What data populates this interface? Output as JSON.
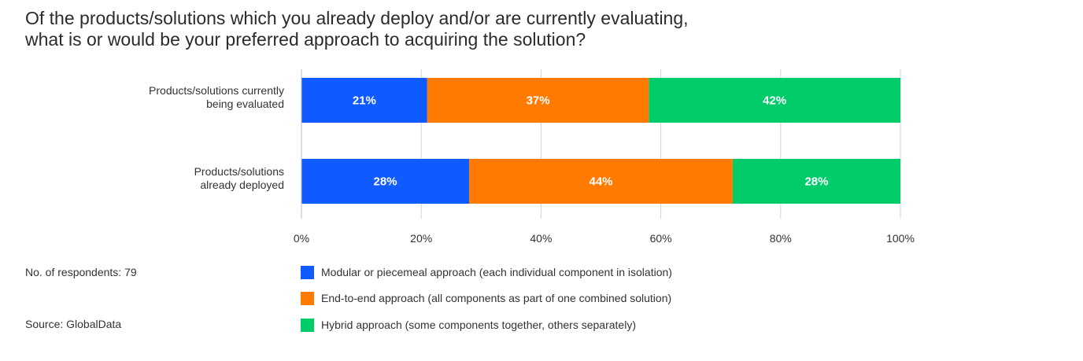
{
  "title_lines": [
    "Of the products/solutions which you already deploy and/or are currently evaluating,",
    "what is or would be your preferred approach to acquiring the solution?"
  ],
  "notes": {
    "respondents": "No. of respondents: 79",
    "source": "Source: GlobalData"
  },
  "colors": {
    "modular": "#0f5bff",
    "end_to_end": "#ff7a00",
    "hybrid": "#00cc6a"
  },
  "chart_data": {
    "type": "bar",
    "orientation": "horizontal",
    "stacked": true,
    "title": "Of the products/solutions which you already deploy and/or are currently evaluating, what is or would be your preferred approach to acquiring the solution?",
    "categories": [
      [
        "Products/solutions currently",
        "being evaluated"
      ],
      [
        "Products/solutions",
        "already deployed"
      ]
    ],
    "series": [
      {
        "name": "Modular or piecemeal approach (each individual component in isolation)",
        "values": [
          21,
          28
        ],
        "labels": [
          "21%",
          "28%"
        ],
        "color": "#0f5bff"
      },
      {
        "name": "End-to-end approach (all components as part of one combined solution)",
        "values": [
          37,
          44
        ],
        "labels": [
          "37%",
          "44%"
        ],
        "color": "#ff7a00"
      },
      {
        "name": "Hybrid approach (some components together, others separately)",
        "values": [
          42,
          28
        ],
        "labels": [
          "42%",
          "28%"
        ],
        "color": "#00cc6a"
      }
    ],
    "x_ticks": [
      0,
      20,
      40,
      60,
      80,
      100
    ],
    "x_tick_labels": [
      "0%",
      "20%",
      "40%",
      "60%",
      "80%",
      "100%"
    ],
    "xlim": [
      0,
      100
    ],
    "grid": true,
    "legend_position": "bottom"
  }
}
